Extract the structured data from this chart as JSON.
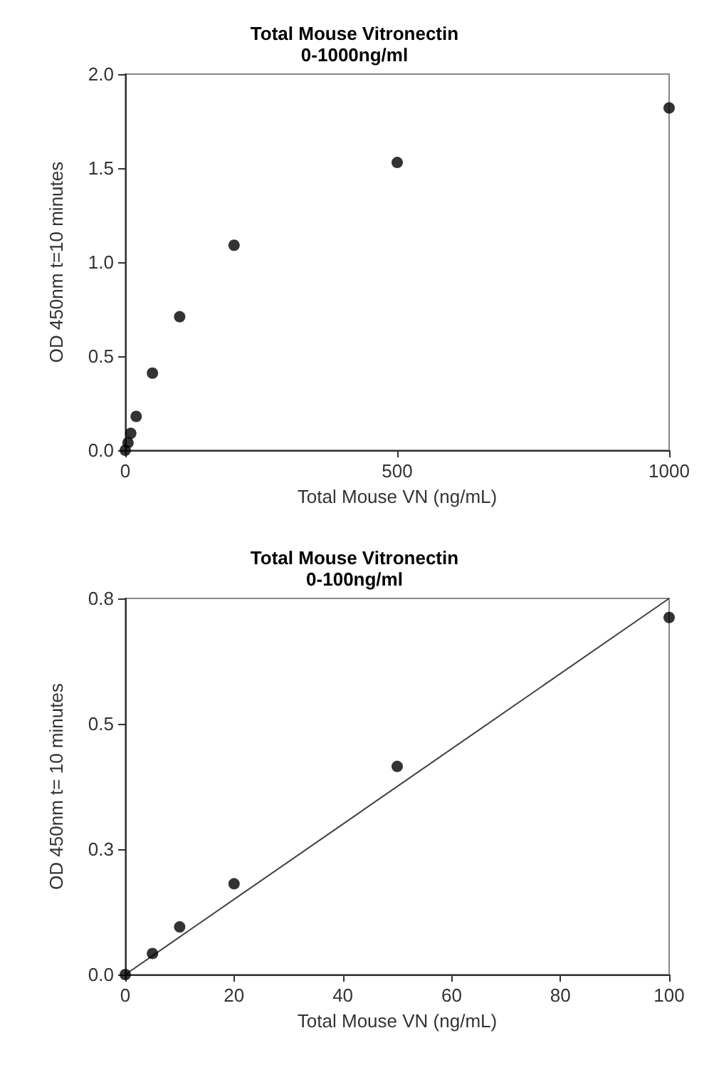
{
  "chart_data": [
    {
      "type": "scatter",
      "title": "Total Mouse Vitronectin",
      "subtitle": "0-1000ng/ml",
      "xlabel": "Total Mouse VN (ng/mL)",
      "ylabel": "OD 450nm t=10 minutes",
      "marker": "circle",
      "series": [
        {
          "color": "#000000",
          "x": [
            0,
            5,
            10,
            20,
            50,
            100,
            200,
            500,
            1000
          ],
          "values": [
            0,
            0.04,
            0.09,
            0.18,
            0.41,
            0.71,
            1.09,
            1.53,
            1.82
          ]
        }
      ],
      "xlim": [
        0,
        1000
      ],
      "xticks": [
        0,
        500,
        1000
      ],
      "ylim": [
        0,
        2
      ],
      "yticks": [
        {
          "value": 0,
          "label": "0.0"
        },
        0.5,
        {
          "value": 1,
          "label": "1.0"
        },
        1.5,
        {
          "value": 2,
          "label": "2.0"
        }
      ]
    },
    {
      "type": "scatter",
      "title": "Total Mouse Vitronectin",
      "subtitle": "0-100ng/ml",
      "xlabel": "Total Mouse VN (ng/mL)",
      "ylabel": "OD 450nm t= 10 minutes",
      "series": [
        {
          "color": "#000000",
          "marker": "circle",
          "x": [
            0,
            5,
            10,
            20,
            50,
            100
          ],
          "values": [
            0,
            0.042,
            0.095,
            0.181,
            0.415,
            0.712
          ]
        },
        {
          "type": "line",
          "color": "#404040",
          "marker": "none",
          "x": [
            0,
            100
          ],
          "values": [
            0,
            0.75
          ]
        }
      ],
      "xlim": [
        0,
        100
      ],
      "xticks": [
        0,
        20,
        40,
        60,
        80,
        100
      ],
      "ylim": [
        0,
        0.75
      ],
      "yticks": [
        {
          "value": 0,
          "label": "0.0"
        },
        {
          "value": 0.25,
          "label": "0.3"
        },
        {
          "value": 0.5,
          "label": "0.5"
        },
        {
          "value": 0.75,
          "label": "0.8"
        }
      ]
    }
  ]
}
